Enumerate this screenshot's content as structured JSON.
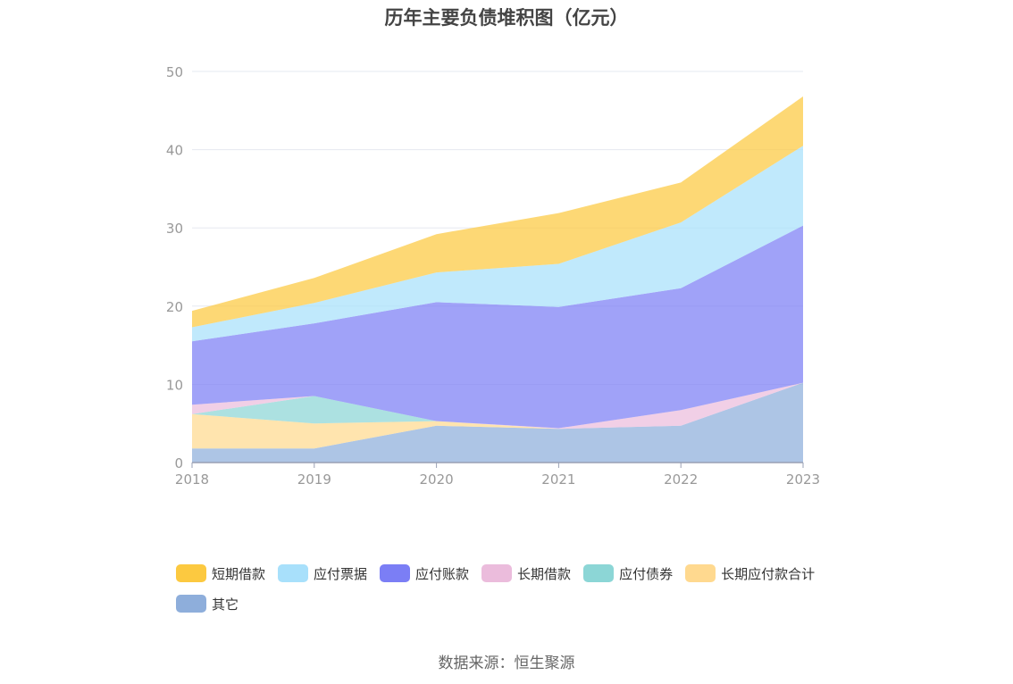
{
  "title": "历年主要负债堆积图（亿元）",
  "source": "数据来源：恒生聚源",
  "chart_data": {
    "type": "area",
    "stacked": true,
    "x": [
      "2018",
      "2019",
      "2020",
      "2021",
      "2022",
      "2023"
    ],
    "ylim": [
      0,
      50
    ],
    "yticks": [
      0,
      10,
      20,
      30,
      40,
      50
    ],
    "grid": true,
    "legend_position": "bottom",
    "series": [
      {
        "name": "其它",
        "color": "#8eaedb",
        "values": [
          1.8,
          1.8,
          4.7,
          4.3,
          4.7,
          10.2
        ]
      },
      {
        "name": "长期应付款合计",
        "color": "#ffd98f",
        "values": [
          4.4,
          3.2,
          0.6,
          0.0,
          0.0,
          0.0
        ]
      },
      {
        "name": "应付债券",
        "color": "#8cd6d6",
        "values": [
          0.0,
          3.5,
          0.0,
          0.0,
          0.0,
          0.0
        ]
      },
      {
        "name": "长期借款",
        "color": "#ebbcdc",
        "values": [
          1.2,
          0.0,
          0.0,
          0.1,
          2.0,
          0.0
        ]
      },
      {
        "name": "应付账款",
        "color": "#7b7ef5",
        "values": [
          8.1,
          9.3,
          15.2,
          15.5,
          15.6,
          20.1
        ]
      },
      {
        "name": "应付票据",
        "color": "#a8e0fb",
        "values": [
          1.8,
          2.6,
          3.8,
          5.5,
          8.4,
          10.2
        ]
      },
      {
        "name": "短期借款",
        "color": "#fcc940",
        "values": [
          2.1,
          3.2,
          4.9,
          6.5,
          5.1,
          6.3
        ]
      }
    ]
  },
  "legend": [
    {
      "label": "短期借款",
      "color": "#fcc940"
    },
    {
      "label": "应付票据",
      "color": "#a8e0fb"
    },
    {
      "label": "应付账款",
      "color": "#7b7ef5"
    },
    {
      "label": "长期借款",
      "color": "#ebbcdc"
    },
    {
      "label": "应付债券",
      "color": "#8cd6d6"
    },
    {
      "label": "长期应付款合计",
      "color": "#ffd98f"
    },
    {
      "label": "其它",
      "color": "#8eaedb"
    }
  ]
}
